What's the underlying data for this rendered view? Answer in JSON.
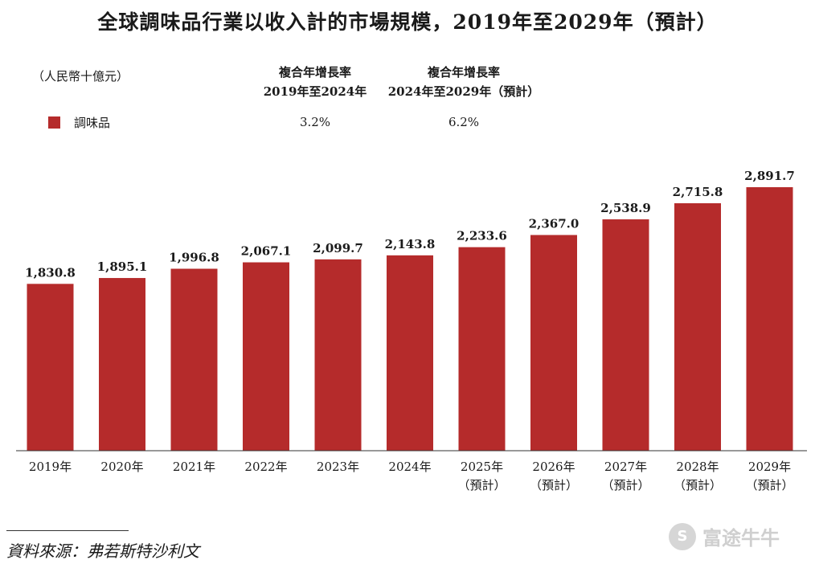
{
  "title": "全球調味品行業以收入計的市場規模，2019年至2029年（預計）",
  "unit_label": "（人民幣十億元）",
  "cagr": {
    "col1_line1": "複合年增長率",
    "col1_line2": "2019年至2024年",
    "col2_line1": "複合年增長率",
    "col2_line2": "2024年至2029年（預計）",
    "val1": "3.2%",
    "val2": "6.2%"
  },
  "legend": {
    "label": "調味品",
    "color": "#b52b2b"
  },
  "source": "資料來源：弗若斯特沙利文",
  "watermark": {
    "text": "富途牛牛",
    "icon": "futu-logo-icon"
  },
  "chart_data": {
    "type": "bar",
    "title": "全球調味品行業以收入計的市場規模，2019年至2029年（預計）",
    "ylabel": "（人民幣十億元）",
    "categories": [
      "2019年",
      "2020年",
      "2021年",
      "2022年",
      "2023年",
      "2024年",
      "2025年",
      "2026年",
      "2027年",
      "2028年",
      "2029年"
    ],
    "category_notes": [
      "",
      "",
      "",
      "",
      "",
      "",
      "（預計）",
      "（預計）",
      "（預計）",
      "（預計）",
      "（預計）"
    ],
    "series": [
      {
        "name": "調味品",
        "color": "#b52b2b",
        "values": [
          1830.8,
          1895.1,
          1996.8,
          2067.1,
          2099.7,
          2143.8,
          2233.6,
          2367.0,
          2538.9,
          2715.8,
          2891.7
        ],
        "labels": [
          "1,830.8",
          "1,895.1",
          "1,996.8",
          "2,067.1",
          "2,099.7",
          "2,143.8",
          "2,233.6",
          "2,367.0",
          "2,538.9",
          "2,715.8",
          "2,891.7"
        ]
      }
    ],
    "ylim": [
      0,
      2891.7
    ],
    "grid": false,
    "legend_position": "top-left"
  }
}
